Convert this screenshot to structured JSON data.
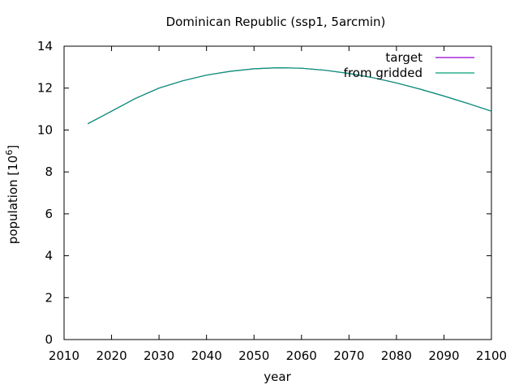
{
  "chart_data": {
    "type": "line",
    "title": "Dominican Republic (ssp1, 5arcmin)",
    "xlabel": "year",
    "ylabel_main": "population [10",
    "ylabel_exp": "6",
    "ylabel_close": "]",
    "xlim": [
      2010,
      2100
    ],
    "ylim": [
      0,
      14
    ],
    "xticks": [
      2010,
      2020,
      2030,
      2040,
      2050,
      2060,
      2070,
      2080,
      2090,
      2100
    ],
    "yticks": [
      0,
      2,
      4,
      6,
      8,
      10,
      12,
      14
    ],
    "grid": false,
    "legend_position": "top-right",
    "x": [
      2015,
      2020,
      2025,
      2030,
      2035,
      2040,
      2045,
      2050,
      2055,
      2060,
      2065,
      2070,
      2075,
      2080,
      2085,
      2090,
      2095,
      2100
    ],
    "series": [
      {
        "name": "target",
        "color": "#9400d3",
        "values": [
          10.3,
          10.9,
          11.5,
          12.0,
          12.35,
          12.62,
          12.8,
          12.92,
          12.97,
          12.95,
          12.85,
          12.7,
          12.5,
          12.25,
          11.95,
          11.62,
          11.27,
          10.9
        ]
      },
      {
        "name": "from gridded",
        "color": "#009e73",
        "values": [
          10.3,
          10.9,
          11.5,
          12.0,
          12.35,
          12.62,
          12.8,
          12.92,
          12.97,
          12.95,
          12.85,
          12.7,
          12.5,
          12.25,
          11.95,
          11.62,
          11.27,
          10.9
        ]
      }
    ]
  }
}
